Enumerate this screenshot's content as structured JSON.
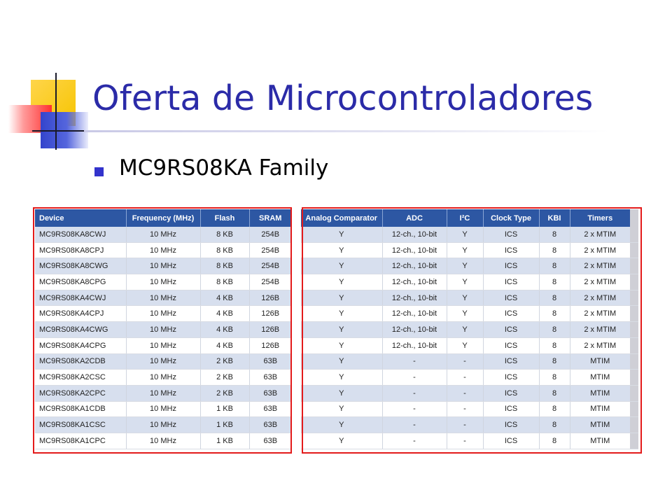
{
  "slide": {
    "title": "Oferta de Microcontroladores",
    "bullet": "MC9RS08KA Family"
  },
  "table": {
    "headers": [
      "Device",
      "Frequency (MHz)",
      "Flash",
      "SRAM",
      "Analog Comparator",
      "ADC",
      "I²C",
      "Clock Type",
      "KBI",
      "Timers"
    ],
    "rows": [
      [
        "MC9RS08KA8CWJ",
        "10 MHz",
        "8 KB",
        "254B",
        "Y",
        "12-ch., 10-bit",
        "Y",
        "ICS",
        "8",
        "2 x MTIM"
      ],
      [
        "MC9RS08KA8CPJ",
        "10 MHz",
        "8 KB",
        "254B",
        "Y",
        "12-ch., 10-bit",
        "Y",
        "ICS",
        "8",
        "2 x MTIM"
      ],
      [
        "MC9RS08KA8CWG",
        "10 MHz",
        "8 KB",
        "254B",
        "Y",
        "12-ch., 10-bit",
        "Y",
        "ICS",
        "8",
        "2 x MTIM"
      ],
      [
        "MC9RS08KA8CPG",
        "10 MHz",
        "8 KB",
        "254B",
        "Y",
        "12-ch., 10-bit",
        "Y",
        "ICS",
        "8",
        "2 x MTIM"
      ],
      [
        "MC9RS08KA4CWJ",
        "10 MHz",
        "4 KB",
        "126B",
        "Y",
        "12-ch., 10-bit",
        "Y",
        "ICS",
        "8",
        "2 x MTIM"
      ],
      [
        "MC9RS08KA4CPJ",
        "10 MHz",
        "4 KB",
        "126B",
        "Y",
        "12-ch., 10-bit",
        "Y",
        "ICS",
        "8",
        "2 x MTIM"
      ],
      [
        "MC9RS08KA4CWG",
        "10 MHz",
        "4 KB",
        "126B",
        "Y",
        "12-ch., 10-bit",
        "Y",
        "ICS",
        "8",
        "2 x MTIM"
      ],
      [
        "MC9RS08KA4CPG",
        "10 MHz",
        "4 KB",
        "126B",
        "Y",
        "12-ch., 10-bit",
        "Y",
        "ICS",
        "8",
        "2 x MTIM"
      ],
      [
        "MC9RS08KA2CDB",
        "10 MHz",
        "2 KB",
        "63B",
        "Y",
        "-",
        "-",
        "ICS",
        "8",
        "MTIM"
      ],
      [
        "MC9RS08KA2CSC",
        "10 MHz",
        "2 KB",
        "63B",
        "Y",
        "-",
        "-",
        "ICS",
        "8",
        "MTIM"
      ],
      [
        "MC9RS08KA2CPC",
        "10 MHz",
        "2 KB",
        "63B",
        "Y",
        "-",
        "-",
        "ICS",
        "8",
        "MTIM"
      ],
      [
        "MC9RS08KA1CDB",
        "10 MHz",
        "1 KB",
        "63B",
        "Y",
        "-",
        "-",
        "ICS",
        "8",
        "MTIM"
      ],
      [
        "MC9RS08KA1CSC",
        "10 MHz",
        "1 KB",
        "63B",
        "Y",
        "-",
        "-",
        "ICS",
        "8",
        "MTIM"
      ],
      [
        "MC9RS08KA1CPC",
        "10 MHz",
        "1 KB",
        "63B",
        "Y",
        "-",
        "-",
        "ICS",
        "8",
        "MTIM"
      ]
    ]
  },
  "colors": {
    "title": "#2b2ba8",
    "table_header": "#2d57a3",
    "row_shade": "#d7dfee",
    "highlight_box": "#e31b1b"
  }
}
